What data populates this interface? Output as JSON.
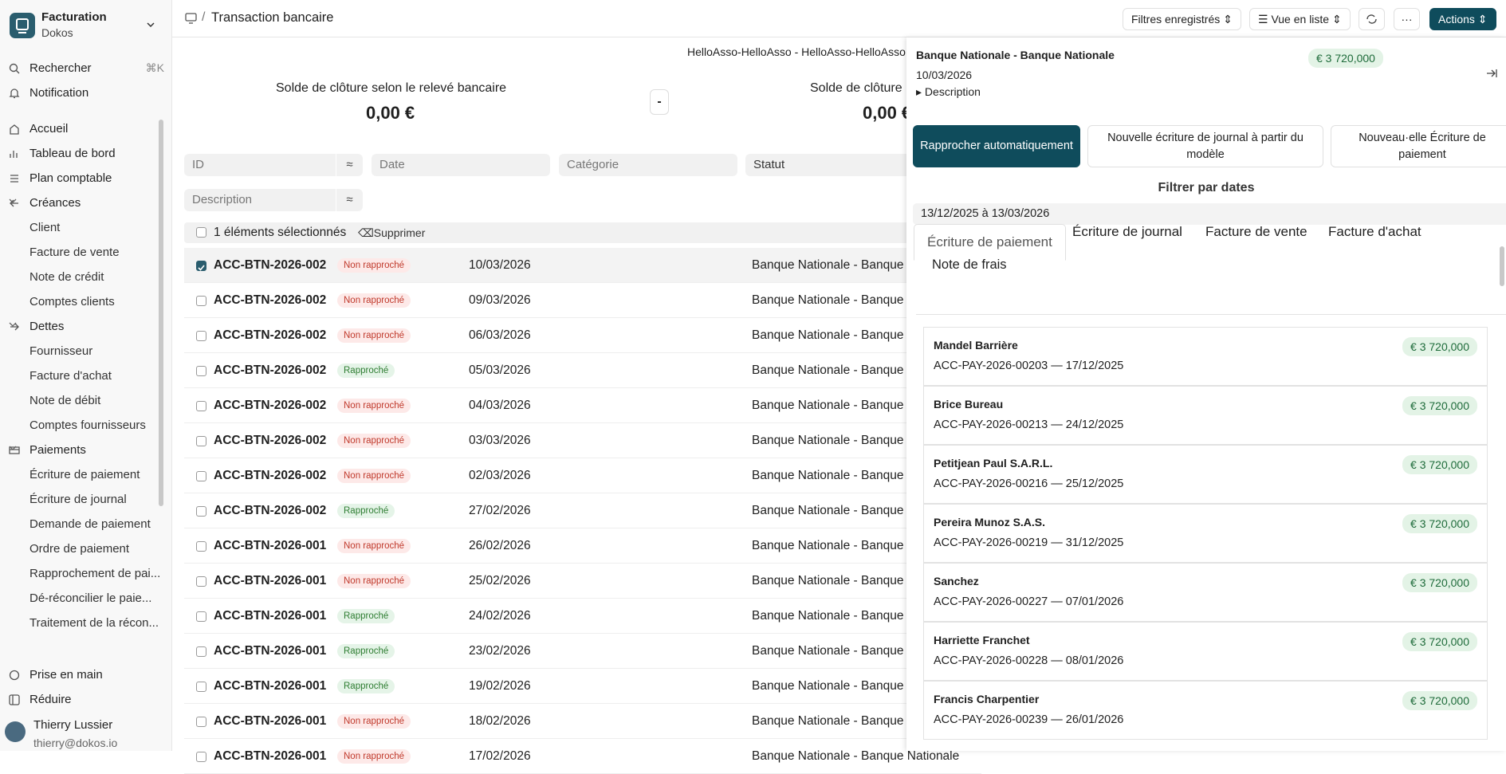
{
  "sidebar": {
    "app_name": "Facturation",
    "company": "Dokos",
    "search": "Rechercher",
    "search_shortcut": "⌘K",
    "notification": "Notification",
    "links": [
      "Accueil",
      "Tableau de bord",
      "Plan comptable"
    ],
    "groups": [
      {
        "title": "Créances",
        "items": [
          "Client",
          "Facture de vente",
          "Note de crédit",
          "Comptes clients"
        ]
      },
      {
        "title": "Dettes",
        "items": [
          "Fournisseur",
          "Facture d'achat",
          "Note de débit",
          "Comptes fournisseurs"
        ]
      },
      {
        "title": "Paiements",
        "items": [
          "Écriture de paiement",
          "Écriture de journal",
          "Demande de paiement",
          "Ordre de paiement",
          "Rapprochement de pai...",
          "Dé-réconcilier le paie...",
          "Traitement de la récon..."
        ]
      }
    ],
    "footer": [
      "Prise en main",
      "Réduire"
    ],
    "user": {
      "name": "Thierry Lussier",
      "email": "thierry@dokos.io"
    }
  },
  "header": {
    "separator": "/",
    "title": "Transaction bancaire",
    "buttons": [
      "Filtres enregistrés",
      "Vue en liste"
    ],
    "actions": "Actions"
  },
  "summary": {
    "account": "HelloAsso-HelloAsso - HelloAsso-HelloAsso",
    "items": [
      {
        "label": "Solde de clôture selon le relevé bancaire",
        "value": "0,00 €"
      },
      {
        "label": "Solde de clôture",
        "value": "0,00 €"
      }
    ],
    "operator": "-"
  },
  "filters": [
    "ID",
    "Date",
    "Catégorie",
    "Statut",
    "Description"
  ],
  "selection": {
    "count": "1 éléments sélectionnés",
    "delete": "Supprimer"
  },
  "rows": [
    {
      "id": "ACC-BTN-2026-002",
      "status": "Non rapproché",
      "tone": "danger",
      "date": "10/03/2026",
      "account": "Banque Nationale - Banque Nationale",
      "selected": true
    },
    {
      "id": "ACC-BTN-2026-002",
      "status": "Non rapproché",
      "tone": "danger",
      "date": "09/03/2026",
      "account": "Banque Nationale - Banque Nationale",
      "selected": false
    },
    {
      "id": "ACC-BTN-2026-002",
      "status": "Non rapproché",
      "tone": "danger",
      "date": "06/03/2026",
      "account": "Banque Nationale - Banque Nationale",
      "selected": false
    },
    {
      "id": "ACC-BTN-2026-002",
      "status": "Rapproché",
      "tone": "success",
      "date": "05/03/2026",
      "account": "Banque Nationale - Banque Nationale",
      "selected": false
    },
    {
      "id": "ACC-BTN-2026-002",
      "status": "Non rapproché",
      "tone": "danger",
      "date": "04/03/2026",
      "account": "Banque Nationale - Banque Nationale",
      "selected": false
    },
    {
      "id": "ACC-BTN-2026-002",
      "status": "Non rapproché",
      "tone": "danger",
      "date": "03/03/2026",
      "account": "Banque Nationale - Banque Nationale",
      "selected": false
    },
    {
      "id": "ACC-BTN-2026-002",
      "status": "Non rapproché",
      "tone": "danger",
      "date": "02/03/2026",
      "account": "Banque Nationale - Banque Nationale",
      "selected": false
    },
    {
      "id": "ACC-BTN-2026-002",
      "status": "Rapproché",
      "tone": "success",
      "date": "27/02/2026",
      "account": "Banque Nationale - Banque Nationale",
      "selected": false
    },
    {
      "id": "ACC-BTN-2026-001",
      "status": "Non rapproché",
      "tone": "danger",
      "date": "26/02/2026",
      "account": "Banque Nationale - Banque Nationale",
      "selected": false
    },
    {
      "id": "ACC-BTN-2026-001",
      "status": "Non rapproché",
      "tone": "danger",
      "date": "25/02/2026",
      "account": "Banque Nationale - Banque Nationale",
      "selected": false
    },
    {
      "id": "ACC-BTN-2026-001",
      "status": "Rapproché",
      "tone": "success",
      "date": "24/02/2026",
      "account": "Banque Nationale - Banque Nationale",
      "selected": false
    },
    {
      "id": "ACC-BTN-2026-001",
      "status": "Rapproché",
      "tone": "success",
      "date": "23/02/2026",
      "account": "Banque Nationale - Banque Nationale",
      "selected": false
    },
    {
      "id": "ACC-BTN-2026-001",
      "status": "Rapproché",
      "tone": "success",
      "date": "19/02/2026",
      "account": "Banque Nationale - Banque Nationale",
      "selected": false
    },
    {
      "id": "ACC-BTN-2026-001",
      "status": "Non rapproché",
      "tone": "danger",
      "date": "18/02/2026",
      "account": "Banque Nationale - Banque Nationale",
      "selected": false
    },
    {
      "id": "ACC-BTN-2026-001",
      "status": "Non rapproché",
      "tone": "danger",
      "date": "17/02/2026",
      "account": "Banque Nationale - Banque Nationale",
      "selected": false
    }
  ],
  "panel": {
    "title": "Banque Nationale - Banque Nationale",
    "amount": "€ 3 720,000",
    "date": "10/03/2026",
    "description": "Description",
    "buttons": [
      "Rapprocher automatiquement",
      "Nouvelle écriture de journal à partir du modèle",
      "Nouveau·elle Écriture de paiement"
    ],
    "filter_label": "Filtrer par dates",
    "date_range": "13/12/2025 à 13/03/2026",
    "tabs": [
      "Écriture de paiement",
      "Écriture de journal",
      "Facture de vente",
      "Facture d'achat",
      "Note de frais"
    ],
    "payments": [
      {
        "party": "Mandel Barrière",
        "reference": "ACC-PAY-2026-00203 — 17/12/2025",
        "amount": "€ 3 720,000"
      },
      {
        "party": "Brice Bureau",
        "reference": "ACC-PAY-2026-00213 — 24/12/2025",
        "amount": "€ 3 720,000"
      },
      {
        "party": "Petitjean Paul S.A.R.L.",
        "reference": "ACC-PAY-2026-00216 — 25/12/2025",
        "amount": "€ 3 720,000"
      },
      {
        "party": "Pereira Munoz S.A.S.",
        "reference": "ACC-PAY-2026-00219 — 31/12/2025",
        "amount": "€ 3 720,000"
      },
      {
        "party": "Sanchez",
        "reference": "ACC-PAY-2026-00227 — 07/01/2026",
        "amount": "€ 3 720,000"
      },
      {
        "party": "Harriette Franchet",
        "reference": "ACC-PAY-2026-00228 — 08/01/2026",
        "amount": "€ 3 720,000"
      },
      {
        "party": "Francis Charpentier",
        "reference": "ACC-PAY-2026-00239 — 26/01/2026",
        "amount": "€ 3 720,000"
      }
    ]
  }
}
